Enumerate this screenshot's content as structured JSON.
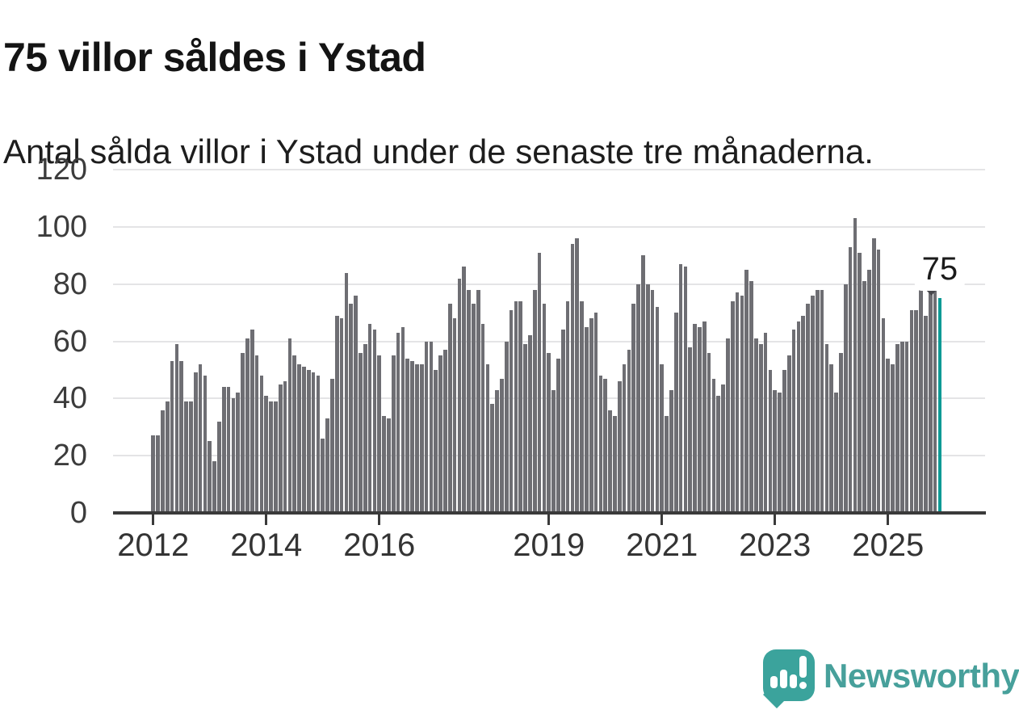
{
  "header": {
    "title": "75 villor såldes i Ystad",
    "subtitle": "Antal sålda villor i Ystad under de senaste tre månaderna."
  },
  "chart_data": {
    "type": "bar",
    "title": "75 villor såldes i Ystad",
    "subtitle": "Antal sålda villor i Ystad under de senaste tre månaderna.",
    "ylim": [
      0,
      120
    ],
    "yticks": [
      0,
      20,
      40,
      60,
      80,
      100,
      120
    ],
    "grid": "horizontal",
    "x_frequency": "monthly",
    "x_start": "2012-01",
    "x_end": "2025-12",
    "xticks": [
      {
        "label": "2012",
        "month_index": 0
      },
      {
        "label": "2014",
        "month_index": 24
      },
      {
        "label": "2016",
        "month_index": 48
      },
      {
        "label": "2019",
        "month_index": 84
      },
      {
        "label": "2021",
        "month_index": 108
      },
      {
        "label": "2023",
        "month_index": 132
      },
      {
        "label": "2025",
        "month_index": 156
      }
    ],
    "values": [
      27,
      27,
      36,
      39,
      53,
      59,
      53,
      39,
      39,
      49,
      52,
      48,
      25,
      18,
      32,
      44,
      44,
      40,
      42,
      56,
      61,
      64,
      55,
      48,
      41,
      39,
      39,
      45,
      46,
      61,
      55,
      52,
      51,
      50,
      49,
      48,
      26,
      33,
      47,
      69,
      68,
      84,
      73,
      76,
      56,
      59,
      66,
      64,
      55,
      34,
      33,
      55,
      63,
      65,
      54,
      53,
      52,
      52,
      60,
      60,
      50,
      55,
      57,
      73,
      68,
      82,
      86,
      78,
      73,
      78,
      66,
      52,
      38,
      43,
      47,
      60,
      71,
      74,
      74,
      59,
      62,
      78,
      91,
      73,
      56,
      43,
      54,
      64,
      74,
      94,
      96,
      74,
      65,
      68,
      70,
      48,
      47,
      36,
      34,
      46,
      52,
      57,
      73,
      80,
      90,
      80,
      78,
      72,
      52,
      34,
      43,
      70,
      87,
      86,
      58,
      66,
      65,
      67,
      56,
      47,
      41,
      45,
      61,
      74,
      77,
      76,
      85,
      81,
      61,
      59,
      63,
      50,
      43,
      42,
      50,
      55,
      64,
      67,
      69,
      73,
      76,
      78,
      78,
      59,
      52,
      42,
      56,
      80,
      93,
      103,
      91,
      81,
      85,
      96,
      92,
      68,
      54,
      52,
      59,
      60,
      60,
      71,
      71,
      84,
      69,
      77,
      79,
      75
    ],
    "bar_color": "#6e6e73",
    "highlight": {
      "month_index": 167,
      "value": 75,
      "label": "75",
      "color": "#0e9a95"
    }
  },
  "footer": {
    "brand": "Newsworthy",
    "brand_color": "#47a09b",
    "logo_icon": "newsworthy-speech-bubble-bar-chart-icon"
  }
}
